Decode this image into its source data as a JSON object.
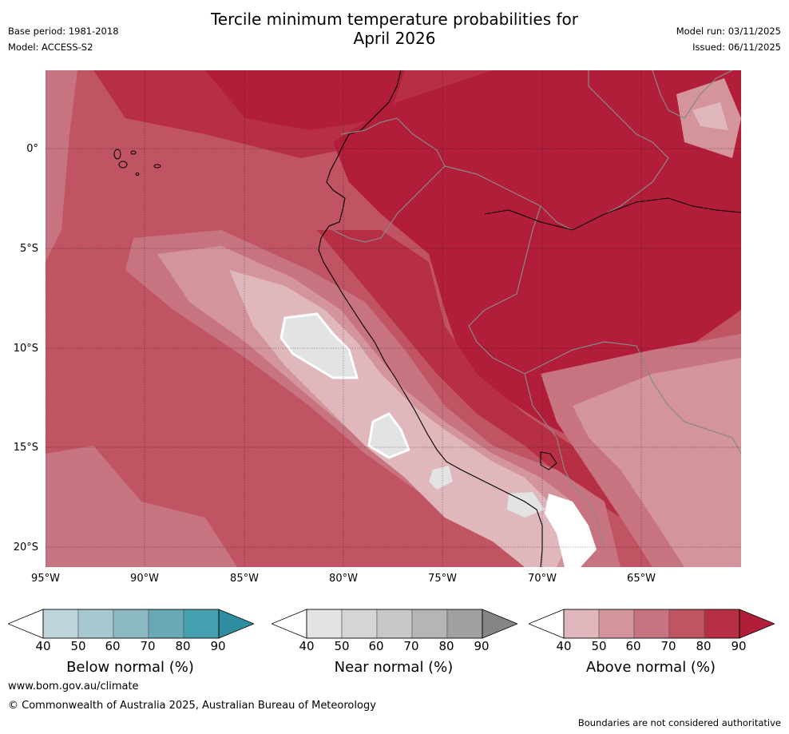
{
  "header": {
    "title_line1": "Tercile minimum temperature probabilities for",
    "title_line2": "April 2026",
    "base_period": "Base period: 1981-2018",
    "model": "Model: ACCESS-S2",
    "model_run": "Model run: 03/11/2025",
    "issued": "Issued: 06/11/2025"
  },
  "map": {
    "latitude_labels": [
      "0°",
      "5°S",
      "10°S",
      "15°S",
      "20°S"
    ],
    "longitude_labels": [
      "95°W",
      "90°W",
      "85°W",
      "80°W",
      "75°W",
      "70°W",
      "65°W"
    ],
    "colors": {
      "above_40": "#e0b7bc",
      "above_50": "#d3949c",
      "above_60": "#c87380",
      "above_70": "#c05463",
      "above_80": "#b72f45",
      "above_90": "#b21e3a",
      "near_40": "#e3e3e3",
      "near_50": "#d6d6d6",
      "white": "#ffffff",
      "coast": "#000000",
      "border": "#888888"
    }
  },
  "colorbars": [
    {
      "name": "below",
      "title": "Below normal (%)",
      "ticks": [
        "40",
        "50",
        "60",
        "70",
        "80",
        "90"
      ],
      "colors": [
        "#bdd5db",
        "#a8c8cf",
        "#8db9c3",
        "#6aa8b5",
        "#45a0b0",
        "#2e8e9f"
      ]
    },
    {
      "name": "near",
      "title": "Near normal (%)",
      "ticks": [
        "40",
        "50",
        "60",
        "70",
        "80",
        "90"
      ],
      "colors": [
        "#e3e3e3",
        "#d5d5d5",
        "#c8c8c8",
        "#b5b5b5",
        "#a0a0a0",
        "#858585"
      ]
    },
    {
      "name": "above",
      "title": "Above normal (%)",
      "ticks": [
        "40",
        "50",
        "60",
        "70",
        "80",
        "90"
      ],
      "colors": [
        "#e0b7bc",
        "#d3949c",
        "#c87380",
        "#c05463",
        "#b72f45",
        "#b21e3a"
      ]
    }
  ],
  "footer": {
    "website": "www.bom.gov.au/climate",
    "copyright": "© Commonwealth of Australia 2025, Australian Bureau of Meteorology",
    "disclaimer": "Boundaries are not considered authoritative"
  }
}
